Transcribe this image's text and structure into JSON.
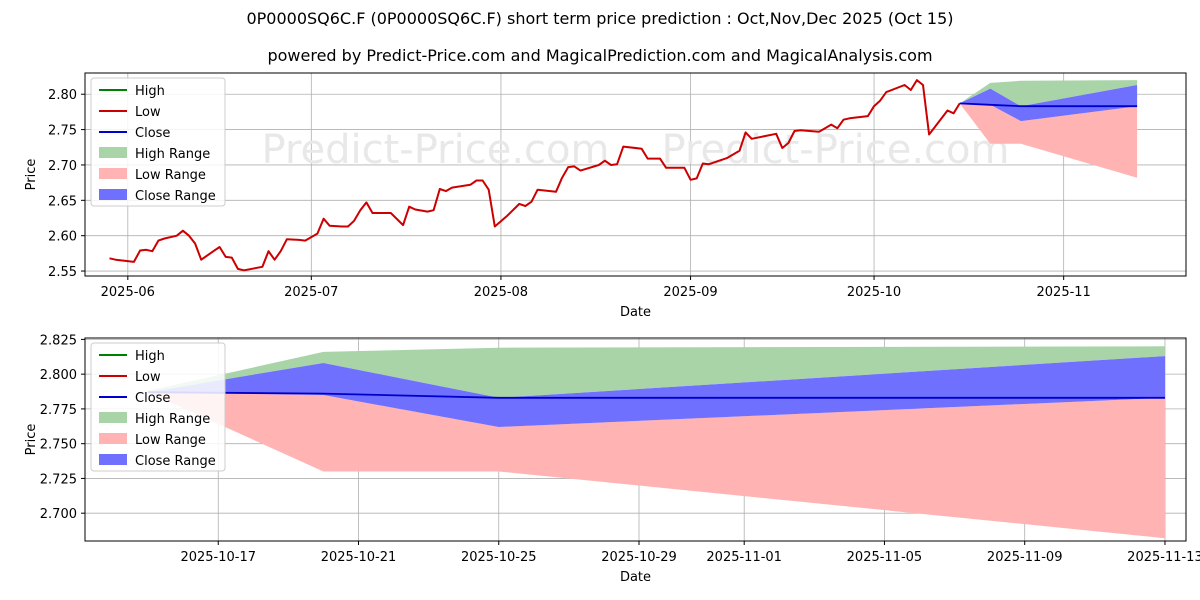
{
  "title": "0P0000SQ6C.F (0P0000SQ6C.F) short term price prediction : Oct,Nov,Dec 2025 (Oct 15)",
  "subtitle": "powered by Predict-Price.com and MagicalPrediction.com and MagicalAnalysis.com",
  "watermark": "Predict-Price.com",
  "colors": {
    "high": "#008000",
    "low": "#cc0000",
    "close": "#0000cc",
    "high_range": "#a8d4a8",
    "low_range": "#ffb3b3",
    "close_range": "#7070ff",
    "grid": "#b0b0b0"
  },
  "chart_data": [
    {
      "type": "line",
      "name": "history-and-forecast",
      "xlabel": "Date",
      "ylabel": "Price",
      "x_domain": [
        -7,
        173
      ],
      "ylim": [
        2.543,
        2.83
      ],
      "grid": true,
      "legend_position": "top-left",
      "legend": [
        "High",
        "Low",
        "Close",
        "High Range",
        "Low Range",
        "Close Range"
      ],
      "x_ticks": [
        {
          "x": 0,
          "label": "2025-06"
        },
        {
          "x": 30,
          "label": "2025-07"
        },
        {
          "x": 61,
          "label": "2025-08"
        },
        {
          "x": 92,
          "label": "2025-09"
        },
        {
          "x": 122,
          "label": "2025-10"
        },
        {
          "x": 153,
          "label": "2025-11"
        }
      ],
      "y_ticks": [
        {
          "v": 2.55,
          "label": "2.55"
        },
        {
          "v": 2.6,
          "label": "2.60"
        },
        {
          "v": 2.65,
          "label": "2.65"
        },
        {
          "v": 2.7,
          "label": "2.70"
        },
        {
          "v": 2.75,
          "label": "2.75"
        },
        {
          "v": 2.8,
          "label": "2.80"
        }
      ],
      "history": [
        [
          -3,
          2.568
        ],
        [
          -2,
          2.566
        ],
        [
          0,
          2.564
        ],
        [
          1,
          2.563
        ],
        [
          2,
          2.579
        ],
        [
          3,
          2.58
        ],
        [
          4,
          2.578
        ],
        [
          5,
          2.593
        ],
        [
          6,
          2.596
        ],
        [
          8,
          2.6
        ],
        [
          9,
          2.607
        ],
        [
          10,
          2.6
        ],
        [
          11,
          2.589
        ],
        [
          12,
          2.566
        ],
        [
          14,
          2.578
        ],
        [
          15,
          2.584
        ],
        [
          16,
          2.57
        ],
        [
          17,
          2.569
        ],
        [
          18,
          2.553
        ],
        [
          19,
          2.551
        ],
        [
          22,
          2.556
        ],
        [
          23,
          2.578
        ],
        [
          24,
          2.566
        ],
        [
          25,
          2.578
        ],
        [
          26,
          2.595
        ],
        [
          28,
          2.594
        ],
        [
          29,
          2.593
        ],
        [
          31,
          2.603
        ],
        [
          32,
          2.624
        ],
        [
          33,
          2.614
        ],
        [
          35,
          2.613
        ],
        [
          36,
          2.613
        ],
        [
          37,
          2.621
        ],
        [
          38,
          2.636
        ],
        [
          39,
          2.647
        ],
        [
          40,
          2.632
        ],
        [
          43,
          2.632
        ],
        [
          45,
          2.615
        ],
        [
          46,
          2.641
        ],
        [
          47,
          2.637
        ],
        [
          49,
          2.634
        ],
        [
          50,
          2.636
        ],
        [
          51,
          2.666
        ],
        [
          52,
          2.663
        ],
        [
          53,
          2.668
        ],
        [
          56,
          2.672
        ],
        [
          57,
          2.678
        ],
        [
          58,
          2.678
        ],
        [
          59,
          2.665
        ],
        [
          60,
          2.613
        ],
        [
          62,
          2.628
        ],
        [
          64,
          2.645
        ],
        [
          65,
          2.642
        ],
        [
          66,
          2.648
        ],
        [
          67,
          2.665
        ],
        [
          70,
          2.662
        ],
        [
          71,
          2.682
        ],
        [
          72,
          2.697
        ],
        [
          73,
          2.698
        ],
        [
          74,
          2.692
        ],
        [
          77,
          2.7
        ],
        [
          78,
          2.706
        ],
        [
          79,
          2.7
        ],
        [
          80,
          2.701
        ],
        [
          81,
          2.726
        ],
        [
          84,
          2.723
        ],
        [
          85,
          2.709
        ],
        [
          87,
          2.709
        ],
        [
          88,
          2.696
        ],
        [
          91,
          2.696
        ],
        [
          92,
          2.679
        ],
        [
          93,
          2.681
        ],
        [
          94,
          2.702
        ],
        [
          95,
          2.701
        ],
        [
          98,
          2.71
        ],
        [
          100,
          2.72
        ],
        [
          101,
          2.746
        ],
        [
          102,
          2.737
        ],
        [
          106,
          2.744
        ],
        [
          107,
          2.724
        ],
        [
          108,
          2.731
        ],
        [
          109,
          2.748
        ],
        [
          110,
          2.749
        ],
        [
          113,
          2.747
        ],
        [
          114,
          2.752
        ],
        [
          115,
          2.757
        ],
        [
          116,
          2.752
        ],
        [
          117,
          2.764
        ],
        [
          118,
          2.766
        ],
        [
          121,
          2.769
        ],
        [
          122,
          2.783
        ],
        [
          123,
          2.791
        ],
        [
          124,
          2.803
        ],
        [
          127,
          2.813
        ],
        [
          128,
          2.806
        ],
        [
          129,
          2.82
        ],
        [
          130,
          2.813
        ],
        [
          131,
          2.743
        ],
        [
          134,
          2.777
        ],
        [
          135,
          2.773
        ],
        [
          136,
          2.787
        ]
      ],
      "forecast_close": [
        [
          136,
          2.787
        ],
        [
          141,
          2.785
        ],
        [
          146,
          2.783
        ],
        [
          165,
          2.783
        ]
      ],
      "high_range": {
        "x": [
          136,
          141,
          146,
          165
        ],
        "upper": [
          2.787,
          2.816,
          2.819,
          2.82
        ],
        "lower": [
          2.787,
          2.808,
          2.783,
          2.813
        ]
      },
      "close_range": {
        "x": [
          136,
          141,
          146,
          165
        ],
        "upper": [
          2.787,
          2.808,
          2.783,
          2.813
        ],
        "lower": [
          2.787,
          2.785,
          2.762,
          2.783
        ]
      },
      "low_range": {
        "x": [
          136,
          141,
          146,
          165
        ],
        "upper": [
          2.787,
          2.785,
          2.762,
          2.783
        ],
        "lower": [
          2.787,
          2.73,
          2.73,
          2.682
        ]
      }
    },
    {
      "type": "line",
      "name": "forecast-zoom",
      "xlabel": "Date",
      "ylabel": "Price",
      "x_domain": [
        -1.8,
        29.6
      ],
      "ylim": [
        2.68,
        2.826
      ],
      "grid": true,
      "legend_position": "top-left",
      "legend": [
        "High",
        "Low",
        "Close",
        "High Range",
        "Low Range",
        "Close Range"
      ],
      "x_ticks": [
        {
          "x": 2,
          "label": "2025-10-17"
        },
        {
          "x": 6,
          "label": "2025-10-21"
        },
        {
          "x": 10,
          "label": "2025-10-25"
        },
        {
          "x": 14,
          "label": "2025-10-29"
        },
        {
          "x": 17,
          "label": "2025-11-01"
        },
        {
          "x": 21,
          "label": "2025-11-05"
        },
        {
          "x": 25,
          "label": "2025-11-09"
        },
        {
          "x": 29,
          "label": "2025-11-13"
        }
      ],
      "y_ticks": [
        {
          "v": 2.7,
          "label": "2.700"
        },
        {
          "v": 2.725,
          "label": "2.725"
        },
        {
          "v": 2.75,
          "label": "2.750"
        },
        {
          "v": 2.775,
          "label": "2.775"
        },
        {
          "v": 2.8,
          "label": "2.800"
        },
        {
          "v": 2.825,
          "label": "2.825"
        }
      ],
      "forecast_close": [
        [
          0,
          2.787
        ],
        [
          5,
          2.786
        ],
        [
          10,
          2.783
        ],
        [
          29,
          2.783
        ]
      ],
      "high_range": {
        "x": [
          0,
          5,
          10,
          29
        ],
        "upper": [
          2.788,
          2.816,
          2.819,
          2.82
        ],
        "lower": [
          2.787,
          2.808,
          2.783,
          2.813
        ]
      },
      "close_range": {
        "x": [
          0,
          5,
          10,
          29
        ],
        "upper": [
          2.787,
          2.808,
          2.783,
          2.813
        ],
        "lower": [
          2.787,
          2.785,
          2.762,
          2.783
        ]
      },
      "low_range": {
        "x": [
          0,
          5,
          10,
          29
        ],
        "upper": [
          2.787,
          2.785,
          2.762,
          2.783
        ],
        "lower": [
          2.787,
          2.73,
          2.73,
          2.682
        ]
      }
    }
  ]
}
